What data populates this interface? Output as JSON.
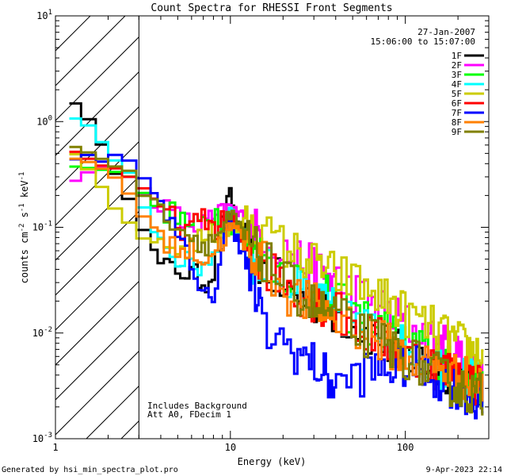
{
  "chart_data": {
    "type": "line",
    "title": "Count Spectra for RHESSI Front Segments",
    "xlabel": "Energy (keV)",
    "ylabel_parts": [
      "counts cm",
      "-2",
      " s",
      "-1",
      " keV",
      "-1"
    ],
    "xscale": "log",
    "yscale": "log",
    "xlim": [
      1,
      300
    ],
    "ylim": [
      0.001,
      10
    ],
    "x_ticks": [
      {
        "value": 1,
        "label": "1"
      },
      {
        "value": 10,
        "label": "10"
      },
      {
        "value": 100,
        "label": "100"
      }
    ],
    "y_ticks": [
      {
        "value": 0.001,
        "base": "10",
        "exp": "-3"
      },
      {
        "value": 0.01,
        "base": "10",
        "exp": "-2"
      },
      {
        "value": 0.1,
        "base": "10",
        "exp": "-1"
      },
      {
        "value": 1,
        "base": "10",
        "exp": "0"
      },
      {
        "value": 10,
        "base": "10",
        "exp": "1"
      }
    ],
    "hatched_region": {
      "x_from": 1,
      "x_to": 3
    },
    "date": "27-Jan-2007",
    "time_range": "15:06:00 to 15:07:00",
    "notes": [
      "Includes Background",
      "Att A0, FDecim 1"
    ],
    "footer_left": "Generated by hsi_min_spectra_plot.pro",
    "footer_right": "9-Apr-2023 22:14",
    "series": [
      {
        "name": "1F",
        "color": "#000000",
        "points": [
          [
            1.2,
            1.6
          ],
          [
            1.5,
            0.8
          ],
          [
            2,
            0.35
          ],
          [
            2.5,
            0.18
          ],
          [
            3,
            0.09
          ],
          [
            4,
            0.04
          ],
          [
            5,
            0.04
          ],
          [
            6,
            0.035
          ],
          [
            7,
            0.03
          ],
          [
            8,
            0.04
          ],
          [
            9,
            0.12
          ],
          [
            10,
            0.2
          ],
          [
            11,
            0.1
          ],
          [
            13,
            0.05
          ],
          [
            16,
            0.04
          ],
          [
            20,
            0.025
          ],
          [
            30,
            0.02
          ],
          [
            50,
            0.012
          ],
          [
            100,
            0.006
          ],
          [
            200,
            0.004
          ],
          [
            280,
            0.003
          ]
        ]
      },
      {
        "name": "2F",
        "color": "#ff00ff",
        "points": [
          [
            1.2,
            0.3
          ],
          [
            1.5,
            0.35
          ],
          [
            2,
            0.35
          ],
          [
            2.5,
            0.3
          ],
          [
            3,
            0.18
          ],
          [
            4,
            0.15
          ],
          [
            5,
            0.12
          ],
          [
            6,
            0.1
          ],
          [
            8,
            0.12
          ],
          [
            10,
            0.15
          ],
          [
            12,
            0.11
          ],
          [
            16,
            0.08
          ],
          [
            20,
            0.06
          ],
          [
            30,
            0.04
          ],
          [
            50,
            0.025
          ],
          [
            100,
            0.012
          ],
          [
            200,
            0.006
          ],
          [
            280,
            0.004
          ]
        ]
      },
      {
        "name": "3F",
        "color": "#00ff00",
        "points": [
          [
            1.2,
            0.35
          ],
          [
            1.5,
            0.4
          ],
          [
            2,
            0.35
          ],
          [
            2.5,
            0.3
          ],
          [
            3,
            0.18
          ],
          [
            4,
            0.15
          ],
          [
            5,
            0.12
          ],
          [
            6,
            0.1
          ],
          [
            7,
            0.12
          ],
          [
            8,
            0.14
          ],
          [
            10,
            0.11
          ],
          [
            12,
            0.07
          ],
          [
            16,
            0.05
          ],
          [
            20,
            0.04
          ],
          [
            30,
            0.025
          ],
          [
            50,
            0.015
          ],
          [
            100,
            0.008
          ],
          [
            200,
            0.004
          ],
          [
            280,
            0.003
          ]
        ]
      },
      {
        "name": "4F",
        "color": "#00ffff",
        "points": [
          [
            1.2,
            1.1
          ],
          [
            1.5,
            0.8
          ],
          [
            2,
            0.4
          ],
          [
            2.5,
            0.3
          ],
          [
            3,
            0.14
          ],
          [
            4,
            0.07
          ],
          [
            5,
            0.05
          ],
          [
            6,
            0.04
          ],
          [
            7,
            0.045
          ],
          [
            8,
            0.06
          ],
          [
            9,
            0.1
          ],
          [
            10,
            0.14
          ],
          [
            11,
            0.1
          ],
          [
            13,
            0.05
          ],
          [
            16,
            0.04
          ],
          [
            20,
            0.03
          ],
          [
            30,
            0.02
          ],
          [
            50,
            0.013
          ],
          [
            100,
            0.007
          ],
          [
            200,
            0.004
          ],
          [
            280,
            0.003
          ]
        ]
      },
      {
        "name": "5F",
        "color": "#cccc00",
        "points": [
          [
            1.2,
            0.45
          ],
          [
            1.5,
            0.3
          ],
          [
            2,
            0.15
          ],
          [
            2.5,
            0.1
          ],
          [
            3,
            0.08
          ],
          [
            4,
            0.07
          ],
          [
            5,
            0.06
          ],
          [
            6,
            0.07
          ],
          [
            7,
            0.08
          ],
          [
            8,
            0.09
          ],
          [
            10,
            0.1
          ],
          [
            12,
            0.1
          ],
          [
            16,
            0.08
          ],
          [
            20,
            0.065
          ],
          [
            30,
            0.045
          ],
          [
            50,
            0.03
          ],
          [
            80,
            0.02
          ],
          [
            100,
            0.015
          ],
          [
            200,
            0.008
          ],
          [
            280,
            0.006
          ]
        ]
      },
      {
        "name": "6F",
        "color": "#ff0000",
        "points": [
          [
            1.2,
            0.5
          ],
          [
            1.5,
            0.45
          ],
          [
            2,
            0.35
          ],
          [
            2.5,
            0.3
          ],
          [
            3,
            0.2
          ],
          [
            4,
            0.15
          ],
          [
            5,
            0.1
          ],
          [
            6,
            0.1
          ],
          [
            7,
            0.12
          ],
          [
            8,
            0.1
          ],
          [
            10,
            0.12
          ],
          [
            12,
            0.07
          ],
          [
            16,
            0.04
          ],
          [
            20,
            0.03
          ],
          [
            30,
            0.02
          ],
          [
            50,
            0.012
          ],
          [
            100,
            0.006
          ],
          [
            200,
            0.004
          ],
          [
            280,
            0.003
          ]
        ]
      },
      {
        "name": "7F",
        "color": "#0000ff",
        "points": [
          [
            1.2,
            0.45
          ],
          [
            1.5,
            0.45
          ],
          [
            2,
            0.45
          ],
          [
            2.5,
            0.4
          ],
          [
            3,
            0.3
          ],
          [
            4,
            0.15
          ],
          [
            5,
            0.1
          ],
          [
            6,
            0.03
          ],
          [
            7,
            0.02
          ],
          [
            8,
            0.025
          ],
          [
            9,
            0.08
          ],
          [
            10,
            0.12
          ],
          [
            11,
            0.08
          ],
          [
            13,
            0.03
          ],
          [
            16,
            0.01
          ],
          [
            20,
            0.008
          ],
          [
            30,
            0.005
          ],
          [
            40,
            0.003
          ],
          [
            50,
            0.004
          ],
          [
            100,
            0.005
          ],
          [
            200,
            0.003
          ],
          [
            280,
            0.002
          ]
        ]
      },
      {
        "name": "8F",
        "color": "#ff8000",
        "points": [
          [
            1.2,
            0.45
          ],
          [
            1.5,
            0.4
          ],
          [
            2,
            0.3
          ],
          [
            2.5,
            0.2
          ],
          [
            3,
            0.12
          ],
          [
            4,
            0.08
          ],
          [
            5,
            0.06
          ],
          [
            6,
            0.06
          ],
          [
            7,
            0.05
          ],
          [
            8,
            0.06
          ],
          [
            10,
            0.1
          ],
          [
            12,
            0.07
          ],
          [
            16,
            0.04
          ],
          [
            20,
            0.025
          ],
          [
            30,
            0.018
          ],
          [
            50,
            0.012
          ],
          [
            100,
            0.006
          ],
          [
            200,
            0.004
          ],
          [
            280,
            0.003
          ]
        ]
      },
      {
        "name": "9F",
        "color": "#808000",
        "points": [
          [
            1.2,
            0.6
          ],
          [
            1.5,
            0.5
          ],
          [
            2,
            0.4
          ],
          [
            2.5,
            0.3
          ],
          [
            3,
            0.2
          ],
          [
            4,
            0.15
          ],
          [
            5,
            0.1
          ],
          [
            6,
            0.08
          ],
          [
            7,
            0.07
          ],
          [
            8,
            0.08
          ],
          [
            10,
            0.12
          ],
          [
            12,
            0.08
          ],
          [
            16,
            0.045
          ],
          [
            20,
            0.03
          ],
          [
            30,
            0.018
          ],
          [
            50,
            0.011
          ],
          [
            100,
            0.006
          ],
          [
            200,
            0.003
          ],
          [
            280,
            0.0025
          ]
        ]
      }
    ]
  }
}
